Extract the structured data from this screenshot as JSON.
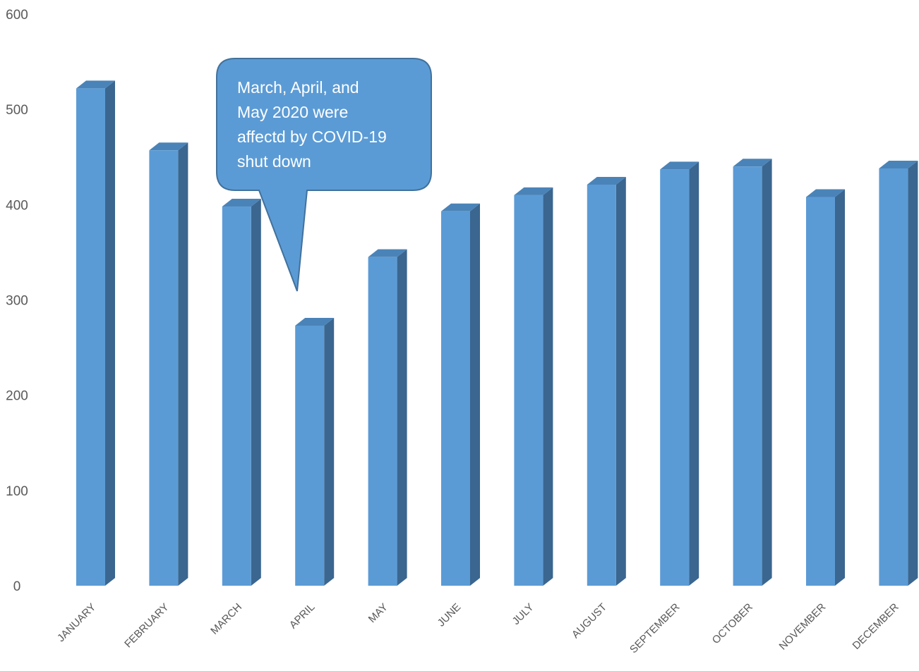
{
  "chart_data": {
    "type": "bar",
    "title": "",
    "xlabel": "",
    "ylabel": "",
    "categories": [
      "JANUARY",
      "FEBRUARY",
      "MARCH",
      "APRIL",
      "MAY",
      "JUNE",
      "JULY",
      "AUGUST",
      "SEPTEMBER",
      "OCTOBER",
      "NOVEMBER",
      "DECEMBER"
    ],
    "values": [
      522,
      457,
      398,
      273,
      345,
      393,
      410,
      421,
      437,
      440,
      408,
      438
    ],
    "ylim": [
      0,
      600
    ],
    "yticks": [
      "0",
      "100",
      "200",
      "300",
      "400",
      "500",
      "600"
    ],
    "grid": false,
    "legend": "none",
    "style": "3d-column",
    "colors": {
      "front": "#5b9bd5",
      "side": "#3a6690",
      "top": "#4a83b8"
    },
    "annotation": {
      "lines": [
        "March, April, and",
        "May 2020 were",
        "affectd by COVID-19",
        "shut down"
      ],
      "points_to": "APRIL",
      "fill": "#5b9bd5",
      "stroke": "#41719c"
    }
  }
}
